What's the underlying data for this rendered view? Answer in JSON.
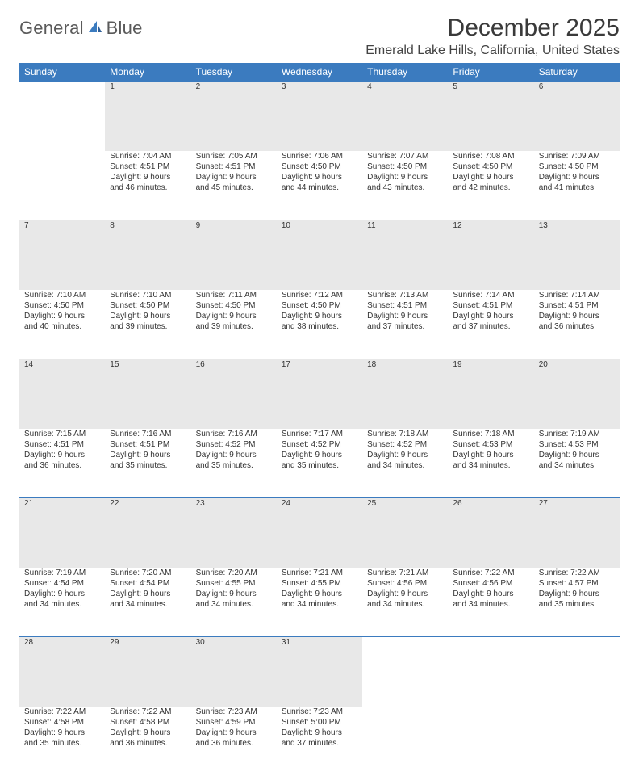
{
  "logo": {
    "text1": "General",
    "text2": "Blue"
  },
  "title": "December 2025",
  "location": "Emerald Lake Hills, California, United States",
  "colors": {
    "header_bg": "#3b7bbf",
    "header_text": "#ffffff",
    "daynum_bg": "#e8e8e8",
    "daynum_border": "#3b7bbf",
    "body_text": "#333333",
    "logo_gray": "#5a5a5a",
    "logo_blue": "#3b7bbf"
  },
  "typography": {
    "title_fontsize": 30,
    "location_fontsize": 16,
    "weekday_fontsize": 12,
    "daynum_fontsize": 12,
    "detail_fontsize": 10
  },
  "weekdays": [
    "Sunday",
    "Monday",
    "Tuesday",
    "Wednesday",
    "Thursday",
    "Friday",
    "Saturday"
  ],
  "weeks": [
    {
      "nums": [
        "",
        "1",
        "2",
        "3",
        "4",
        "5",
        "6"
      ],
      "details": [
        "",
        "Sunrise: 7:04 AM\nSunset: 4:51 PM\nDaylight: 9 hours and 46 minutes.",
        "Sunrise: 7:05 AM\nSunset: 4:51 PM\nDaylight: 9 hours and 45 minutes.",
        "Sunrise: 7:06 AM\nSunset: 4:50 PM\nDaylight: 9 hours and 44 minutes.",
        "Sunrise: 7:07 AM\nSunset: 4:50 PM\nDaylight: 9 hours and 43 minutes.",
        "Sunrise: 7:08 AM\nSunset: 4:50 PM\nDaylight: 9 hours and 42 minutes.",
        "Sunrise: 7:09 AM\nSunset: 4:50 PM\nDaylight: 9 hours and 41 minutes."
      ]
    },
    {
      "nums": [
        "7",
        "8",
        "9",
        "10",
        "11",
        "12",
        "13"
      ],
      "details": [
        "Sunrise: 7:10 AM\nSunset: 4:50 PM\nDaylight: 9 hours and 40 minutes.",
        "Sunrise: 7:10 AM\nSunset: 4:50 PM\nDaylight: 9 hours and 39 minutes.",
        "Sunrise: 7:11 AM\nSunset: 4:50 PM\nDaylight: 9 hours and 39 minutes.",
        "Sunrise: 7:12 AM\nSunset: 4:50 PM\nDaylight: 9 hours and 38 minutes.",
        "Sunrise: 7:13 AM\nSunset: 4:51 PM\nDaylight: 9 hours and 37 minutes.",
        "Sunrise: 7:14 AM\nSunset: 4:51 PM\nDaylight: 9 hours and 37 minutes.",
        "Sunrise: 7:14 AM\nSunset: 4:51 PM\nDaylight: 9 hours and 36 minutes."
      ]
    },
    {
      "nums": [
        "14",
        "15",
        "16",
        "17",
        "18",
        "19",
        "20"
      ],
      "details": [
        "Sunrise: 7:15 AM\nSunset: 4:51 PM\nDaylight: 9 hours and 36 minutes.",
        "Sunrise: 7:16 AM\nSunset: 4:51 PM\nDaylight: 9 hours and 35 minutes.",
        "Sunrise: 7:16 AM\nSunset: 4:52 PM\nDaylight: 9 hours and 35 minutes.",
        "Sunrise: 7:17 AM\nSunset: 4:52 PM\nDaylight: 9 hours and 35 minutes.",
        "Sunrise: 7:18 AM\nSunset: 4:52 PM\nDaylight: 9 hours and 34 minutes.",
        "Sunrise: 7:18 AM\nSunset: 4:53 PM\nDaylight: 9 hours and 34 minutes.",
        "Sunrise: 7:19 AM\nSunset: 4:53 PM\nDaylight: 9 hours and 34 minutes."
      ]
    },
    {
      "nums": [
        "21",
        "22",
        "23",
        "24",
        "25",
        "26",
        "27"
      ],
      "details": [
        "Sunrise: 7:19 AM\nSunset: 4:54 PM\nDaylight: 9 hours and 34 minutes.",
        "Sunrise: 7:20 AM\nSunset: 4:54 PM\nDaylight: 9 hours and 34 minutes.",
        "Sunrise: 7:20 AM\nSunset: 4:55 PM\nDaylight: 9 hours and 34 minutes.",
        "Sunrise: 7:21 AM\nSunset: 4:55 PM\nDaylight: 9 hours and 34 minutes.",
        "Sunrise: 7:21 AM\nSunset: 4:56 PM\nDaylight: 9 hours and 34 minutes.",
        "Sunrise: 7:22 AM\nSunset: 4:56 PM\nDaylight: 9 hours and 34 minutes.",
        "Sunrise: 7:22 AM\nSunset: 4:57 PM\nDaylight: 9 hours and 35 minutes."
      ]
    },
    {
      "nums": [
        "28",
        "29",
        "30",
        "31",
        "",
        "",
        ""
      ],
      "details": [
        "Sunrise: 7:22 AM\nSunset: 4:58 PM\nDaylight: 9 hours and 35 minutes.",
        "Sunrise: 7:22 AM\nSunset: 4:58 PM\nDaylight: 9 hours and 36 minutes.",
        "Sunrise: 7:23 AM\nSunset: 4:59 PM\nDaylight: 9 hours and 36 minutes.",
        "Sunrise: 7:23 AM\nSunset: 5:00 PM\nDaylight: 9 hours and 37 minutes.",
        "",
        "",
        ""
      ]
    }
  ]
}
